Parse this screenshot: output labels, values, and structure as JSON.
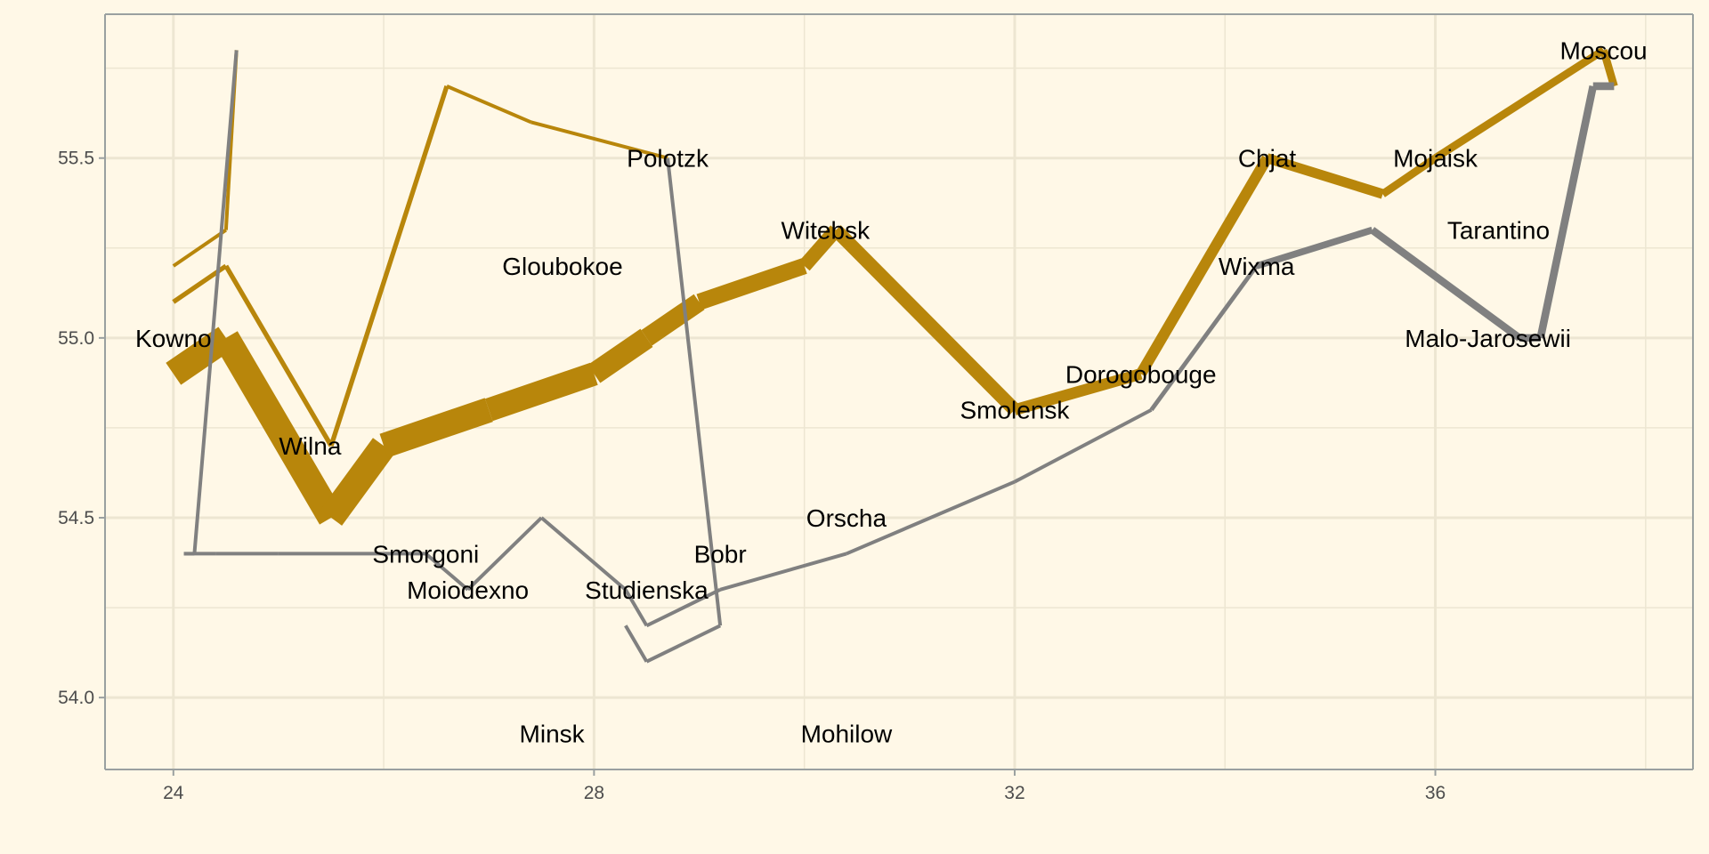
{
  "chart_data": {
    "type": "line",
    "title": "",
    "xlabel": "",
    "ylabel": "",
    "xlim": [
      23.35,
      38.45
    ],
    "ylim": [
      53.8,
      55.9
    ],
    "x_ticks": [
      "24",
      "28",
      "32",
      "36"
    ],
    "y_ticks": [
      "54.0",
      "54.5",
      "55.0",
      "55.5"
    ],
    "x_tick_values": [
      24,
      28,
      32,
      36
    ],
    "y_tick_values": [
      54.0,
      54.5,
      55.0,
      55.5
    ],
    "x_minor_grid": [
      26,
      30,
      34,
      38
    ],
    "y_minor_grid": [
      54.25,
      54.75,
      55.25,
      55.75
    ],
    "grid": true,
    "legend": "none",
    "colors": {
      "advance": "#b8860b",
      "retreat": "#808080",
      "grid": "#ede6d2",
      "axis": "#9aa0a0",
      "background": "#fff8e7"
    },
    "series": [
      {
        "direction": "advance",
        "group": 1,
        "points": [
          {
            "x": 24.0,
            "y": 54.9,
            "w": 340000
          },
          {
            "x": 24.5,
            "y": 55.0,
            "w": 340000
          },
          {
            "x": 25.5,
            "y": 54.5,
            "w": 340000
          },
          {
            "x": 26.0,
            "y": 54.7,
            "w": 320000
          },
          {
            "x": 27.0,
            "y": 54.8,
            "w": 300000
          },
          {
            "x": 28.0,
            "y": 54.9,
            "w": 280000
          },
          {
            "x": 28.5,
            "y": 55.0,
            "w": 240000
          },
          {
            "x": 29.0,
            "y": 55.1,
            "w": 210000
          },
          {
            "x": 30.0,
            "y": 55.2,
            "w": 180000
          },
          {
            "x": 30.3,
            "y": 55.3,
            "w": 175000
          },
          {
            "x": 32.0,
            "y": 54.8,
            "w": 145000
          },
          {
            "x": 33.2,
            "y": 54.9,
            "w": 140000
          },
          {
            "x": 34.4,
            "y": 55.5,
            "w": 127100
          },
          {
            "x": 35.5,
            "y": 55.4,
            "w": 100000
          },
          {
            "x": 36.0,
            "y": 55.5,
            "w": 100000
          },
          {
            "x": 37.6,
            "y": 55.8,
            "w": 100000
          },
          {
            "x": 37.7,
            "y": 55.7,
            "w": 100000
          }
        ]
      },
      {
        "direction": "retreat",
        "group": 1,
        "points": [
          {
            "x": 37.7,
            "y": 55.7,
            "w": 100000
          },
          {
            "x": 37.5,
            "y": 55.7,
            "w": 98000
          },
          {
            "x": 37.0,
            "y": 55.0,
            "w": 97000
          },
          {
            "x": 36.8,
            "y": 55.0,
            "w": 96000
          },
          {
            "x": 35.4,
            "y": 55.3,
            "w": 87000
          },
          {
            "x": 34.3,
            "y": 55.2,
            "w": 55000
          },
          {
            "x": 33.3,
            "y": 54.8,
            "w": 37000
          },
          {
            "x": 32.0,
            "y": 54.6,
            "w": 24000
          },
          {
            "x": 30.4,
            "y": 54.4,
            "w": 20000
          },
          {
            "x": 29.2,
            "y": 54.3,
            "w": 20000
          },
          {
            "x": 28.5,
            "y": 54.2,
            "w": 20000
          },
          {
            "x": 28.3,
            "y": 54.3,
            "w": 20000
          },
          {
            "x": 27.5,
            "y": 54.5,
            "w": 20000
          },
          {
            "x": 26.8,
            "y": 54.3,
            "w": 12000
          },
          {
            "x": 26.4,
            "y": 54.4,
            "w": 14000
          },
          {
            "x": 25.0,
            "y": 54.4,
            "w": 8000
          },
          {
            "x": 24.4,
            "y": 54.4,
            "w": 4000
          },
          {
            "x": 24.2,
            "y": 54.4,
            "w": 4000
          },
          {
            "x": 24.1,
            "y": 54.4,
            "w": 4000
          }
        ]
      },
      {
        "direction": "advance",
        "group": 2,
        "points": [
          {
            "x": 24.0,
            "y": 55.1,
            "w": 60000
          },
          {
            "x": 24.5,
            "y": 55.2,
            "w": 60000
          },
          {
            "x": 25.5,
            "y": 54.7,
            "w": 60000
          },
          {
            "x": 26.6,
            "y": 55.7,
            "w": 40000
          },
          {
            "x": 27.4,
            "y": 55.6,
            "w": 33000
          },
          {
            "x": 28.7,
            "y": 55.5,
            "w": 33000
          }
        ]
      },
      {
        "direction": "retreat",
        "group": 2,
        "points": [
          {
            "x": 28.7,
            "y": 55.5,
            "w": 33000
          },
          {
            "x": 29.2,
            "y": 54.2,
            "w": 30000
          },
          {
            "x": 28.5,
            "y": 54.1,
            "w": 30000
          },
          {
            "x": 28.3,
            "y": 54.2,
            "w": 28000
          }
        ]
      },
      {
        "direction": "advance",
        "group": 3,
        "points": [
          {
            "x": 24.0,
            "y": 55.2,
            "w": 22000
          },
          {
            "x": 24.5,
            "y": 55.3,
            "w": 22000
          },
          {
            "x": 24.6,
            "y": 55.8,
            "w": 6000
          }
        ]
      },
      {
        "direction": "retreat",
        "group": 3,
        "points": [
          {
            "x": 24.6,
            "y": 55.8,
            "w": 6000
          },
          {
            "x": 24.2,
            "y": 54.4,
            "w": 6000
          },
          {
            "x": 24.1,
            "y": 54.4,
            "w": 6000
          }
        ]
      }
    ],
    "cities": [
      {
        "name": "Kowno",
        "x": 24.0,
        "y": 55.0
      },
      {
        "name": "Wilna",
        "x": 25.3,
        "y": 54.7
      },
      {
        "name": "Smorgoni",
        "x": 26.4,
        "y": 54.4
      },
      {
        "name": "Moiodexno",
        "x": 26.8,
        "y": 54.3
      },
      {
        "name": "Gloubokoe",
        "x": 27.7,
        "y": 55.2
      },
      {
        "name": "Minsk",
        "x": 27.6,
        "y": 53.9
      },
      {
        "name": "Studienska",
        "x": 28.5,
        "y": 54.3
      },
      {
        "name": "Polotzk",
        "x": 28.7,
        "y": 55.5
      },
      {
        "name": "Bobr",
        "x": 29.2,
        "y": 54.4
      },
      {
        "name": "Witebsk",
        "x": 30.2,
        "y": 55.3
      },
      {
        "name": "Orscha",
        "x": 30.4,
        "y": 54.5
      },
      {
        "name": "Mohilow",
        "x": 30.4,
        "y": 53.9
      },
      {
        "name": "Smolensk",
        "x": 32.0,
        "y": 54.8
      },
      {
        "name": "Dorogobouge",
        "x": 33.2,
        "y": 54.9
      },
      {
        "name": "Wixma",
        "x": 34.3,
        "y": 55.2
      },
      {
        "name": "Chjat",
        "x": 34.4,
        "y": 55.5
      },
      {
        "name": "Mojaisk",
        "x": 36.0,
        "y": 55.5
      },
      {
        "name": "Tarantino",
        "x": 36.6,
        "y": 55.3
      },
      {
        "name": "Malo-Jarosewii",
        "x": 36.5,
        "y": 55.0
      },
      {
        "name": "Moscou",
        "x": 37.6,
        "y": 55.8
      }
    ]
  }
}
